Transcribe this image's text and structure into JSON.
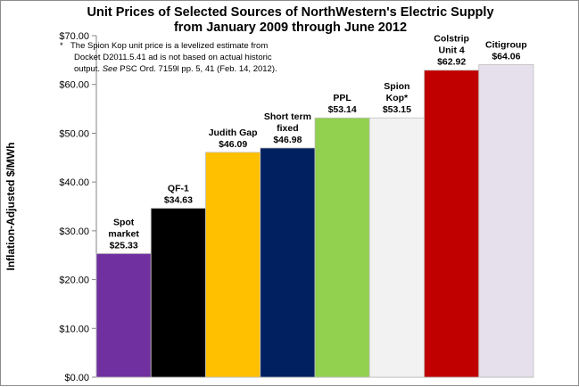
{
  "chart_data": {
    "type": "bar",
    "title_lines": [
      "Unit Prices of Selected Sources of NorthWestern's Electric Supply",
      "from January 2009 through June 2012"
    ],
    "ylabel": "Inflation-Adjusted $/MWh",
    "xlabel": "",
    "ylim": [
      0,
      70
    ],
    "yticks": [
      0,
      10,
      20,
      30,
      40,
      50,
      60,
      70
    ],
    "ytick_labels": [
      "$0.00",
      "$10.00",
      "$20.00",
      "$30.00",
      "$40.00",
      "$50.00",
      "$60.00",
      "$70.00"
    ],
    "grid": "none",
    "legend": "none",
    "categories": [
      "Spot market",
      "QF-1",
      "Judith Gap",
      "Short term fixed",
      "PPL",
      "Spion Kop*",
      "Colstrip Unit 4",
      "Citigroup"
    ],
    "values": [
      25.33,
      34.63,
      46.09,
      46.98,
      53.14,
      53.15,
      62.92,
      64.06
    ],
    "bars": [
      {
        "name_lines": [
          "Spot",
          "market"
        ],
        "value_label": "$25.33",
        "color": "#7030a0"
      },
      {
        "name_lines": [
          "QF-1"
        ],
        "value_label": "$34.63",
        "color": "#000000"
      },
      {
        "name_lines": [
          "Judith Gap"
        ],
        "value_label": "$46.09",
        "color": "#ffc000"
      },
      {
        "name_lines": [
          "Short term",
          "fixed"
        ],
        "value_label": "$46.98",
        "color": "#002060"
      },
      {
        "name_lines": [
          "PPL"
        ],
        "value_label": "$53.14",
        "color": "#92d050"
      },
      {
        "name_lines": [
          "Spion",
          "Kop*"
        ],
        "value_label": "$53.15",
        "color": "#f2f2f2"
      },
      {
        "name_lines": [
          "Colstrip",
          "Unit 4"
        ],
        "value_label": "$62.92",
        "color": "#c00000"
      },
      {
        "name_lines": [
          "Citigroup"
        ],
        "value_label": "$64.06",
        "color": "#e6e0ec"
      }
    ],
    "annotation": {
      "marker": "*",
      "lines": [
        "The Spion Kop unit price is a levelized estimate from",
        "Docket D2011.5.41  ad is not based on actual historic",
        "output.  See PSC Ord. 7159l  pp. 5, 41 (Feb. 14, 2012)."
      ]
    }
  }
}
